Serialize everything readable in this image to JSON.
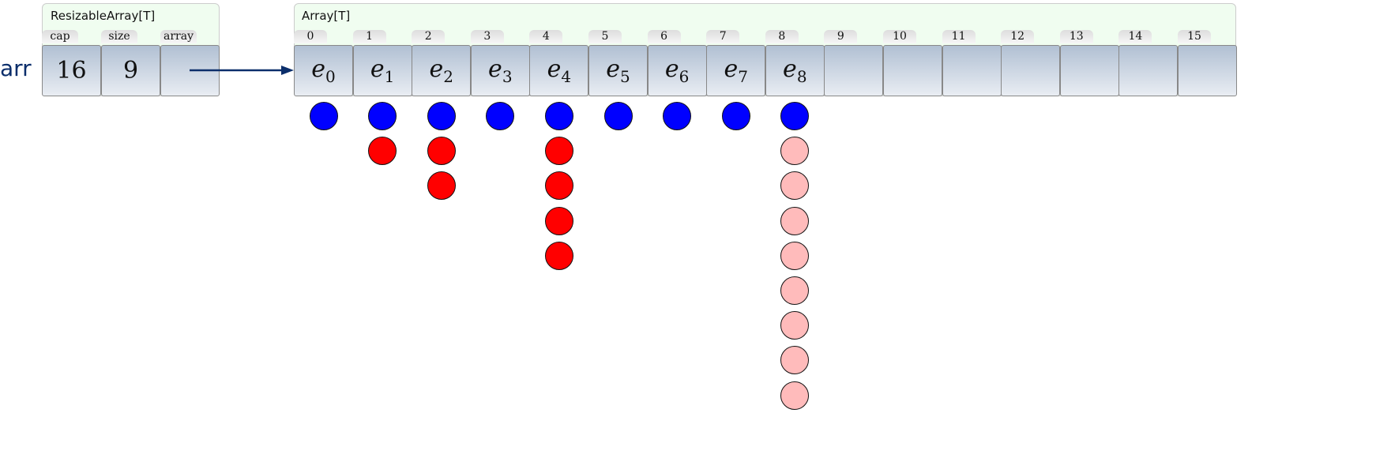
{
  "variable": "arr",
  "resizable": {
    "title": "ResizableArray[T]",
    "fields": [
      {
        "label": "cap",
        "value": "16"
      },
      {
        "label": "size",
        "value": "9"
      },
      {
        "label": "array",
        "value": ""
      }
    ]
  },
  "array": {
    "title": "Array[T]",
    "cells": [
      {
        "index": "0",
        "value": "e",
        "sub": "0"
      },
      {
        "index": "1",
        "value": "e",
        "sub": "1"
      },
      {
        "index": "2",
        "value": "e",
        "sub": "2"
      },
      {
        "index": "3",
        "value": "e",
        "sub": "3"
      },
      {
        "index": "4",
        "value": "e",
        "sub": "4"
      },
      {
        "index": "5",
        "value": "e",
        "sub": "5"
      },
      {
        "index": "6",
        "value": "e",
        "sub": "6"
      },
      {
        "index": "7",
        "value": "e",
        "sub": "7"
      },
      {
        "index": "8",
        "value": "e",
        "sub": "8"
      },
      {
        "index": "9",
        "value": "",
        "sub": ""
      },
      {
        "index": "10",
        "value": "",
        "sub": ""
      },
      {
        "index": "11",
        "value": "",
        "sub": ""
      },
      {
        "index": "12",
        "value": "",
        "sub": ""
      },
      {
        "index": "13",
        "value": "",
        "sub": ""
      },
      {
        "index": "14",
        "value": "",
        "sub": ""
      },
      {
        "index": "15",
        "value": "",
        "sub": ""
      }
    ]
  },
  "colors": {
    "blue": "#0000ff",
    "red": "#ff0000",
    "pink": "#ffbbbb",
    "arrow": "#0b2e6b"
  },
  "cost_columns": [
    {
      "cell": 0,
      "dots": [
        "blue"
      ]
    },
    {
      "cell": 1,
      "dots": [
        "blue",
        "red"
      ]
    },
    {
      "cell": 2,
      "dots": [
        "blue",
        "red",
        "red"
      ]
    },
    {
      "cell": 3,
      "dots": [
        "blue"
      ]
    },
    {
      "cell": 4,
      "dots": [
        "blue",
        "red",
        "red",
        "red",
        "red"
      ]
    },
    {
      "cell": 5,
      "dots": [
        "blue"
      ]
    },
    {
      "cell": 6,
      "dots": [
        "blue"
      ]
    },
    {
      "cell": 7,
      "dots": [
        "blue"
      ]
    },
    {
      "cell": 8,
      "dots": [
        "blue",
        "pink",
        "pink",
        "pink",
        "pink",
        "pink",
        "pink",
        "pink",
        "pink"
      ]
    }
  ]
}
